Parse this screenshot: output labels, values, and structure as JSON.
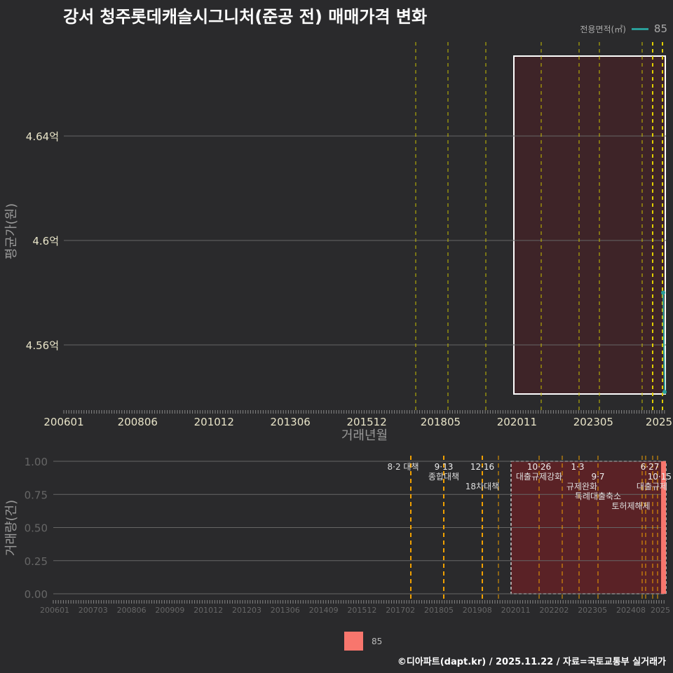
{
  "title": "강서 청주롯데캐슬시그니처(준공 전) 매매가격 변화",
  "legend": {
    "title": "전용면적(㎡)",
    "item": "85",
    "color": "#2a9d98",
    "bar_color": "#f8766d"
  },
  "footer": "©디아파트(dapt.kr) / 2025.11.22 / 자료=국토교통부 실거래가",
  "chart_data": [
    {
      "type": "line",
      "title": "강서 청주롯데캐슬시그니처(준공 전) 매매가격 변화",
      "xlabel": "거래년월",
      "ylabel": "평균가(원)",
      "x_ticks": [
        "200601",
        "200806",
        "201012",
        "201306",
        "201512",
        "201805",
        "202011",
        "202305",
        "2025"
      ],
      "y_ticks": [
        {
          "v": 4.56,
          "label": "4.56억"
        },
        {
          "v": 4.6,
          "label": "4.6억"
        },
        {
          "v": 4.64,
          "label": "4.64억"
        }
      ],
      "ylim": [
        4.537,
        4.677
      ],
      "series": [
        {
          "name": "85",
          "x": [
            "202509",
            "202510"
          ],
          "y": [
            4.58,
            4.542
          ]
        }
      ]
    },
    {
      "type": "bar",
      "xlabel": "",
      "ylabel": "거래량(건)",
      "x_ticks": [
        "200601",
        "200703",
        "200806",
        "200909",
        "201012",
        "201203",
        "201306",
        "201409",
        "201512",
        "201702",
        "201805",
        "201908",
        "202011",
        "202202",
        "202305",
        "202408",
        "2025"
      ],
      "y_ticks": [
        "0.00",
        "0.25",
        "0.50",
        "0.75",
        "1.00"
      ],
      "ylim": [
        0,
        1
      ],
      "series": [
        {
          "name": "85",
          "x": [
            "202510"
          ],
          "y": [
            1
          ]
        }
      ],
      "events": [
        {
          "date": "8·2",
          "label": "대책"
        },
        {
          "date": "9·13",
          "label": "종합대책"
        },
        {
          "date": "12·16",
          "label": "18차대책"
        },
        {
          "date": "10·26",
          "label": "대출규제강화"
        },
        {
          "date": "1·3",
          "label": "규제완화"
        },
        {
          "date": "9·7",
          "label": "특례대출축소"
        },
        {
          "date": "",
          "label": "토허제해제"
        },
        {
          "date": "6·27",
          "label": "대출규제"
        },
        {
          "date": "10·15",
          "label": ""
        }
      ]
    }
  ]
}
